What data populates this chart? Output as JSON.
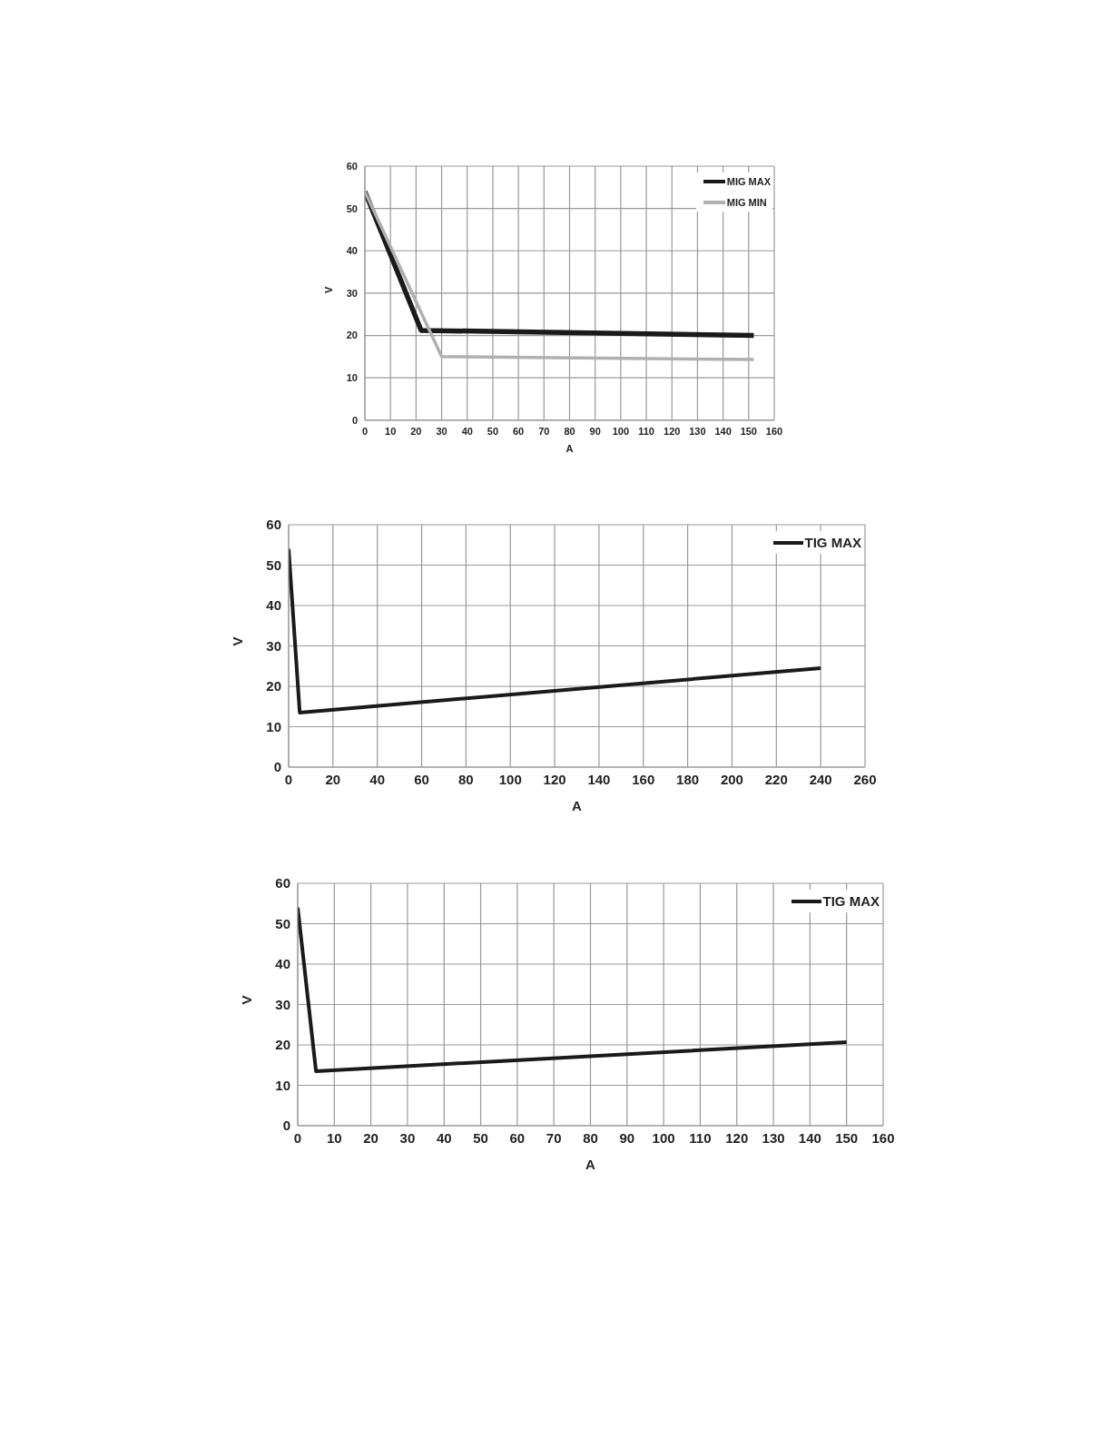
{
  "chart_data": [
    {
      "type": "line",
      "xlabel": "A",
      "ylabel": "V",
      "xlim": [
        0,
        160
      ],
      "xticks": [
        0,
        10,
        20,
        30,
        40,
        50,
        60,
        70,
        80,
        90,
        100,
        110,
        120,
        130,
        140,
        150,
        160
      ],
      "ylim": [
        0,
        60
      ],
      "yticks": [
        0,
        10,
        20,
        30,
        40,
        50,
        60
      ],
      "grid": true,
      "legend": "top right",
      "marker": "none",
      "line_style": "solid",
      "series": [
        {
          "name": "MIG MAX",
          "color": "#1a1a1a",
          "x": [
            0,
            22,
            152
          ],
          "values": [
            54,
            21.2,
            20
          ]
        },
        {
          "name": "MIG MIN",
          "color": "#b0b0b0",
          "x": [
            0,
            30,
            152
          ],
          "values": [
            54,
            15,
            14.3
          ]
        }
      ]
    },
    {
      "type": "line",
      "xlabel": "A",
      "ylabel": "V",
      "xlim": [
        0,
        260
      ],
      "xticks": [
        0,
        20,
        40,
        60,
        80,
        100,
        120,
        140,
        160,
        180,
        200,
        220,
        240,
        260
      ],
      "ylim": [
        0,
        60
      ],
      "yticks": [
        0,
        10,
        20,
        30,
        40,
        50,
        60
      ],
      "grid": true,
      "legend": "top right",
      "marker": "none",
      "line_style": "solid",
      "series": [
        {
          "name": "TIG MAX",
          "color": "#1a1a1a",
          "x": [
            0,
            5,
            240
          ],
          "values": [
            54,
            13.5,
            24.5
          ]
        }
      ]
    },
    {
      "type": "line",
      "xlabel": "A",
      "ylabel": "V",
      "xlim": [
        0,
        160
      ],
      "xticks": [
        0,
        10,
        20,
        30,
        40,
        50,
        60,
        70,
        80,
        90,
        100,
        110,
        120,
        130,
        140,
        150,
        160
      ],
      "ylim": [
        0,
        60
      ],
      "yticks": [
        0,
        10,
        20,
        30,
        40,
        50,
        60
      ],
      "grid": true,
      "legend": "top right",
      "marker": "none",
      "line_style": "solid",
      "series": [
        {
          "name": "TIG MAX",
          "color": "#1a1a1a",
          "x": [
            0,
            5,
            150
          ],
          "values": [
            54,
            13.5,
            20.7
          ]
        }
      ]
    }
  ]
}
